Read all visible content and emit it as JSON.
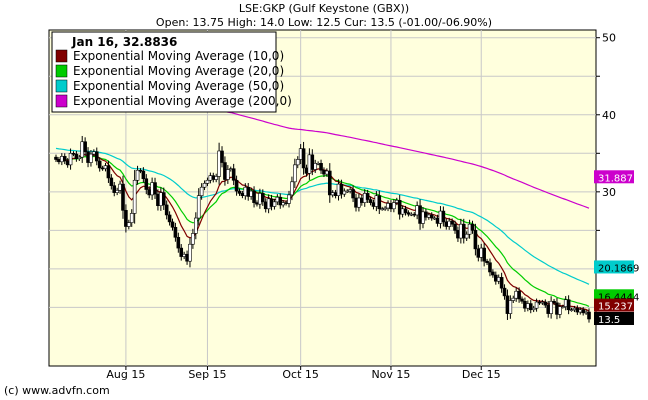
{
  "header": {
    "title": "LSE:GKP (Gulf Keystone (GBX))",
    "ohlc": "Open: 13.75 High: 14.0 Low: 12.5 Cur: 13.5 (-01.00/-06.90%)"
  },
  "legend": {
    "date_value": "Jan 16, 32.8836",
    "entries": [
      {
        "label": "Exponential Moving Average (10,0)",
        "color": "#800000"
      },
      {
        "label": "Exponential Moving Average (20,0)",
        "color": "#00cc00"
      },
      {
        "label": "Exponential Moving Average (50,0)",
        "color": "#00cccc"
      },
      {
        "label": "Exponential Moving Average (200,0)",
        "color": "#cc00cc"
      }
    ]
  },
  "footer": {
    "copyright": "(c) www.advfn.com"
  },
  "colors": {
    "plot_bg": "#ffffdd",
    "grid": "#c8c8c8",
    "up": "#ffffff",
    "down": "#000000"
  },
  "chart_data": {
    "type": "candlestick",
    "y_axis": {
      "position": "right",
      "ticks": [
        50,
        40,
        30
      ],
      "ylim": [
        7.4,
        51.0
      ]
    },
    "x_ticks": [
      {
        "label": "Aug 15",
        "index": 24
      },
      {
        "label": "Sep 15",
        "index": 52
      },
      {
        "label": "Oct 15",
        "index": 84
      },
      {
        "label": "Nov 15",
        "index": 115
      },
      {
        "label": "Dec 15",
        "index": 146
      }
    ],
    "badges": [
      {
        "text": "31.8871",
        "value": 31.8871,
        "bg": "#cc00cc",
        "fg": "#ffffff"
      },
      {
        "text": "20.1869",
        "value": 20.1869,
        "bg": "#00cccc",
        "fg": "#000000"
      },
      {
        "text": "16.4444",
        "value": 16.4444,
        "bg": "#00cc00",
        "fg": "#000000"
      },
      {
        "text": "15.237",
        "value": 15.237,
        "bg": "#800000",
        "fg": "#ffffff"
      },
      {
        "text": "13.5",
        "value": 13.5,
        "bg": "#000000",
        "fg": "#ffffff"
      }
    ],
    "close": [
      34.2,
      33.9,
      34.6,
      34.0,
      33.5,
      35.0,
      34.9,
      34.3,
      34.5,
      36.5,
      35.2,
      33.8,
      34.9,
      35.2,
      34.0,
      33.1,
      33.0,
      33.4,
      31.8,
      30.8,
      29.9,
      30.2,
      31.0,
      27.6,
      25.5,
      26.0,
      27.2,
      31.5,
      32.8,
      32.7,
      31.7,
      30.3,
      29.6,
      31.2,
      29.7,
      28.2,
      29.9,
      28.3,
      27.0,
      26.1,
      25.4,
      24.1,
      22.7,
      21.6,
      21.9,
      21.0,
      23.2,
      24.6,
      26.6,
      29.5,
      30.6,
      31.1,
      31.5,
      32.1,
      31.6,
      32.0,
      35.3,
      33.8,
      31.6,
      32.9,
      33.0,
      31.5,
      30.1,
      29.8,
      29.5,
      30.6,
      29.4,
      30.1,
      28.6,
      28.4,
      29.8,
      28.7,
      27.8,
      29.1,
      28.1,
      28.7,
      29.3,
      28.3,
      28.6,
      28.5,
      29.6,
      31.3,
      33.5,
      34.2,
      35.6,
      33.1,
      32.4,
      34.8,
      32.9,
      33.7,
      33.7,
      32.8,
      32.3,
      32.7,
      29.6,
      29.9,
      29.5,
      31.0,
      29.7,
      30.1,
      30.1,
      30.3,
      29.2,
      28.0,
      29.2,
      28.6,
      29.8,
      29.0,
      28.6,
      28.1,
      29.5,
      27.8,
      27.8,
      27.9,
      28.5,
      27.8,
      28.6,
      28.9,
      27.1,
      27.8,
      27.3,
      27.1,
      27.1,
      27.0,
      28.2,
      25.9,
      27.4,
      26.7,
      27.0,
      26.6,
      26.6,
      25.9,
      27.5,
      26.1,
      25.5,
      26.2,
      25.8,
      25.0,
      24.0,
      25.8,
      24.0,
      24.5,
      25.8,
      25.0,
      22.6,
      21.5,
      22.7,
      21.0,
      20.8,
      19.6,
      19.2,
      18.4,
      18.9,
      17.5,
      16.5,
      14.2,
      15.9,
      16.2,
      17.1,
      16.1,
      15.8,
      14.9,
      15.5,
      14.7,
      14.9,
      15.7,
      15.6,
      15.7,
      15.3,
      14.2,
      15.8,
      15.6,
      14.1,
      15.1,
      15.1,
      16.0,
      14.7,
      14.7,
      14.9,
      14.4,
      14.7,
      14.3,
      14.4,
      13.5
    ]
  }
}
